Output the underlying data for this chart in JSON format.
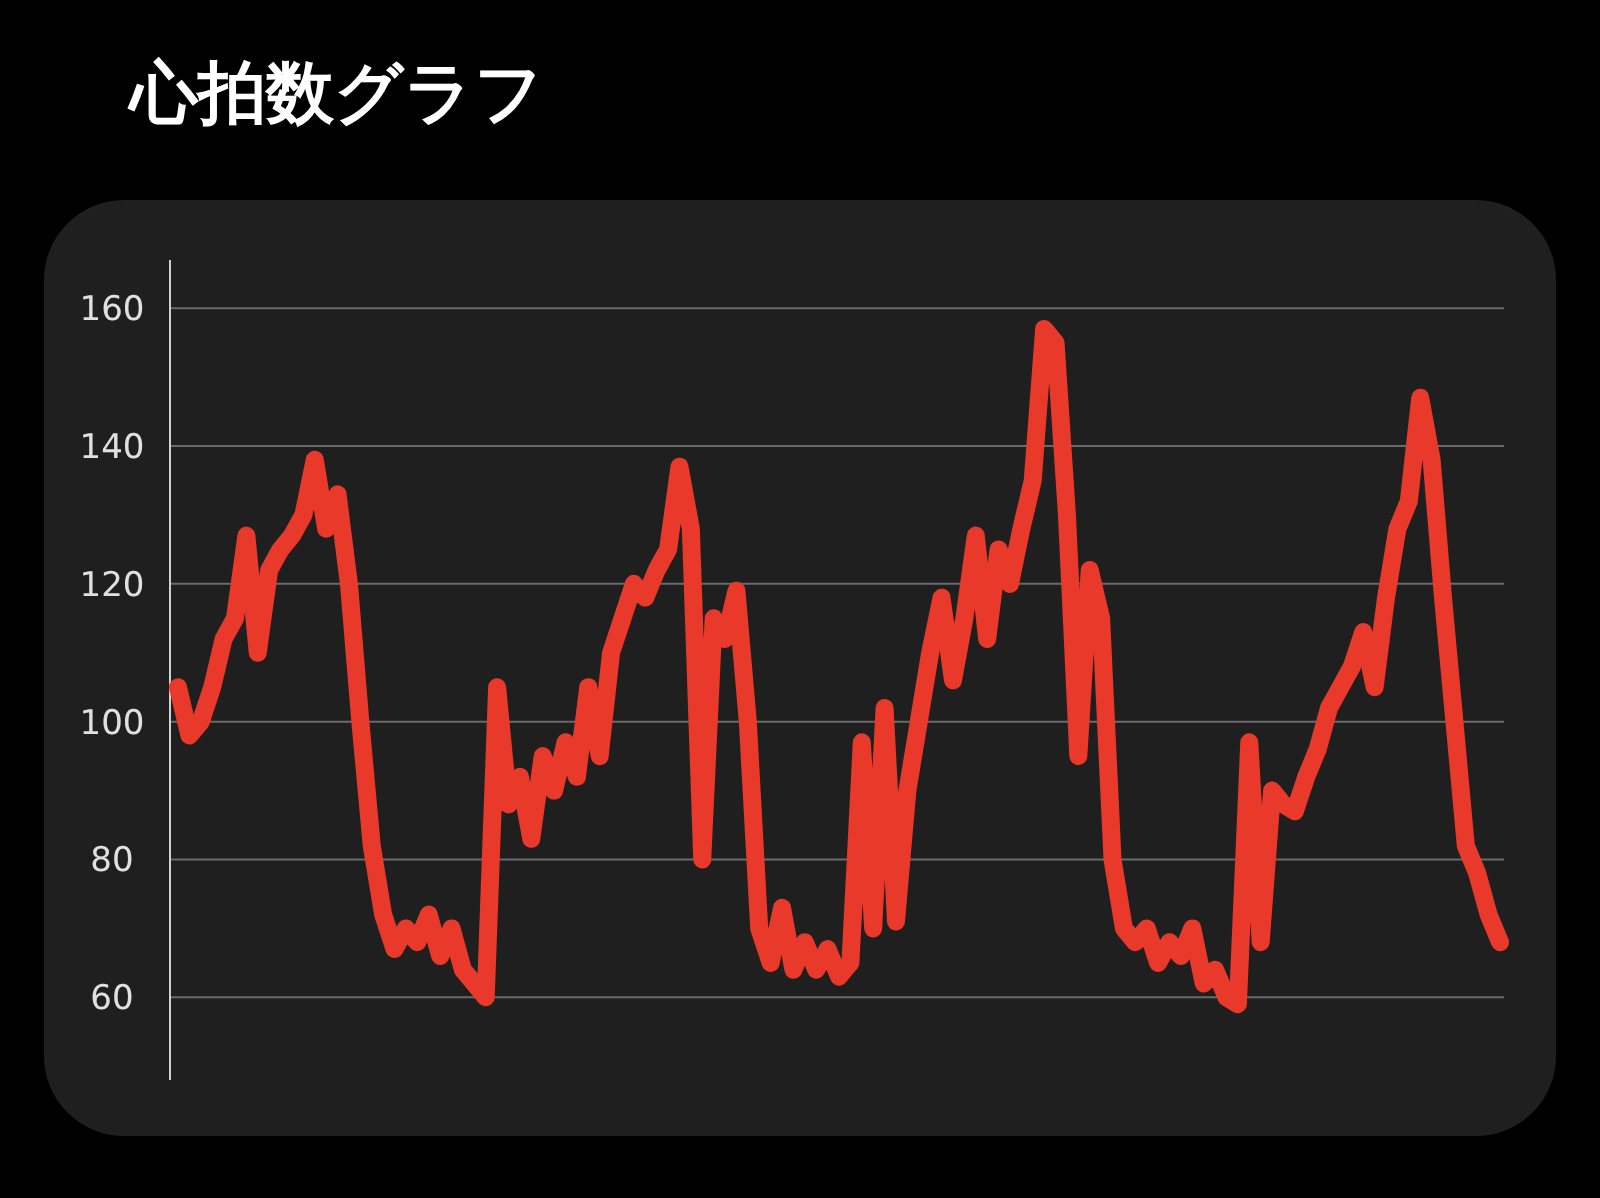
{
  "chart_data": {
    "type": "line",
    "title": "心拍数グラフ",
    "categories": [
      null,
      null,
      null,
      null,
      null,
      null,
      null,
      null,
      null,
      null,
      null,
      null,
      null,
      null,
      null,
      null,
      null,
      null,
      null,
      null,
      null,
      null,
      null,
      null,
      null,
      null,
      null,
      null,
      null,
      null,
      null,
      null,
      null,
      null,
      null,
      null,
      null,
      null,
      null,
      null,
      null,
      null,
      null,
      null,
      null,
      null,
      null,
      null,
      null,
      null,
      null,
      null,
      null,
      null,
      null,
      null,
      null,
      null,
      null,
      null,
      null,
      null,
      null,
      null,
      null,
      null,
      null,
      null,
      null,
      null,
      null,
      null,
      null,
      null,
      null,
      null,
      null,
      null,
      null,
      null,
      null,
      null,
      null,
      null,
      null,
      null,
      null,
      null,
      null,
      null,
      null,
      null,
      null,
      null,
      null,
      null,
      null,
      null,
      null,
      null,
      null,
      null,
      null,
      null,
      null,
      null,
      null,
      null,
      null,
      null,
      null,
      null,
      null,
      null,
      null,
      null,
      null
    ],
    "series": [
      {
        "color": "#e8392a",
        "values": [
          105,
          98,
          100,
          105,
          112,
          115,
          127,
          110,
          122,
          125,
          127,
          130,
          138,
          128,
          133,
          120,
          100,
          82,
          72,
          67,
          70,
          68,
          72,
          66,
          70,
          64,
          62,
          60,
          105,
          88,
          92,
          83,
          95,
          90,
          97,
          92,
          105,
          95,
          110,
          115,
          120,
          118,
          122,
          125,
          137,
          128,
          80,
          115,
          112,
          119,
          100,
          70,
          65,
          73,
          64,
          68,
          64,
          67,
          63,
          65,
          97,
          70,
          102,
          71,
          90,
          100,
          110,
          118,
          106,
          115,
          127,
          112,
          125,
          120,
          128,
          135,
          157,
          155,
          130,
          95,
          122,
          115,
          80,
          70,
          68,
          70,
          65,
          68,
          66,
          70,
          62,
          64,
          60,
          59,
          97,
          68,
          90,
          88,
          87,
          92,
          96,
          102,
          105,
          108,
          113,
          105,
          118,
          128,
          132,
          147,
          138,
          118,
          100,
          82,
          78,
          72,
          68
        ]
      }
    ],
    "ylim": [
      48,
      167
    ],
    "yticks": [
      60,
      80,
      100,
      120,
      140,
      160
    ],
    "grid": "y",
    "marker": "none",
    "line_style": "solid",
    "tick_labels": "y"
  }
}
